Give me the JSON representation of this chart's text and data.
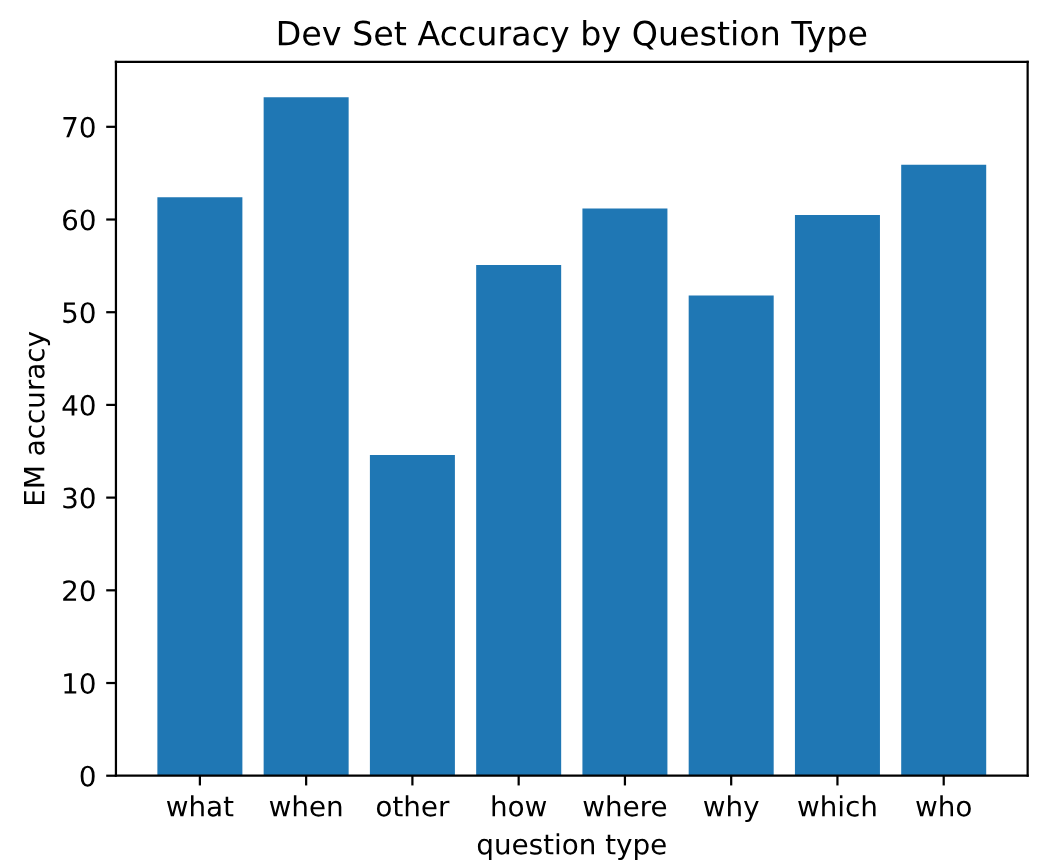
{
  "chart_data": {
    "type": "bar",
    "title": "Dev Set Accuracy by Question Type",
    "xlabel": "question type",
    "ylabel": "EM accuracy",
    "categories": [
      "what",
      "when",
      "other",
      "how",
      "where",
      "why",
      "which",
      "who"
    ],
    "values": [
      62.4,
      73.2,
      34.6,
      55.1,
      61.2,
      51.8,
      60.5,
      65.9
    ],
    "color": "#1f77b4",
    "ylim": [
      0,
      77
    ],
    "yticks": [
      0,
      10,
      20,
      30,
      40,
      50,
      60,
      70
    ],
    "grid": false,
    "legend": false
  }
}
